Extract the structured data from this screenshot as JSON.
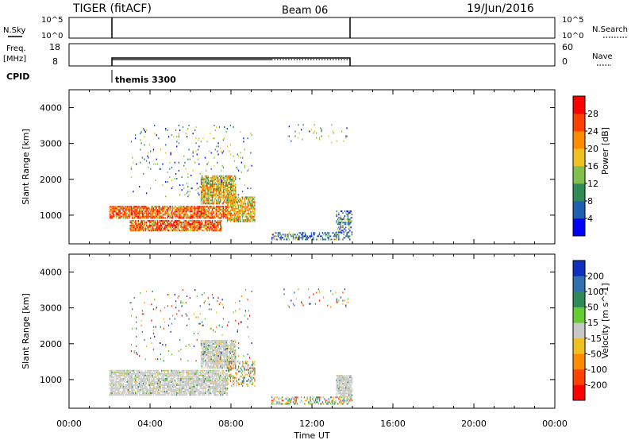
{
  "header": {
    "title_left": "TIGER (fitACF)",
    "title_center": "Beam 06",
    "title_right": "19/Jun/2016"
  },
  "top_panels": {
    "nsky": {
      "label": "N.Sky",
      "ticks": [
        "10^5",
        "10^0"
      ],
      "right_ticks": [
        "10^5",
        "10^0"
      ],
      "right_label": "N.Search"
    },
    "freq": {
      "label_line1": "Freq.",
      "label_line2": "[MHz]",
      "ticks": [
        "18",
        "8"
      ],
      "right_ticks": [
        "60",
        "0"
      ],
      "right_label": "Nave"
    },
    "cpid": {
      "label": "CPID",
      "program": "themis 3300"
    }
  },
  "xaxis": {
    "label": "Time UT",
    "ticks": [
      "00:00",
      "04:00",
      "08:00",
      "12:00",
      "16:00",
      "20:00",
      "00:00"
    ]
  },
  "chart_data": [
    {
      "type": "heatmap",
      "name": "power-panel",
      "ylabel": "Slant Range [km]",
      "ylim": [
        200,
        4500
      ],
      "yticks": [
        "1000",
        "2000",
        "3000",
        "4000"
      ],
      "xlim_hours": [
        0,
        24
      ],
      "colorbar": {
        "label": "Power [dB]",
        "ticks": [
          "4",
          "8",
          "12",
          "16",
          "20",
          "24",
          "28"
        ],
        "colors": [
          "#0000ff",
          "#2060b0",
          "#2e8b57",
          "#7fc04a",
          "#f0c020",
          "#ff8c00",
          "#ff4000",
          "#ff0000"
        ]
      },
      "regions": [
        {
          "t": [
            2.0,
            7.8
          ],
          "r": [
            900,
            1250
          ],
          "level": "high"
        },
        {
          "t": [
            3.0,
            7.5
          ],
          "r": [
            550,
            850
          ],
          "level": "high"
        },
        {
          "t": [
            6.5,
            8.2
          ],
          "r": [
            1300,
            2100
          ],
          "level": "mid"
        },
        {
          "t": [
            7.8,
            9.2
          ],
          "r": [
            800,
            1500
          ],
          "level": "mid"
        },
        {
          "t": [
            10.0,
            14.0
          ],
          "r": [
            300,
            500
          ],
          "level": "low"
        },
        {
          "t": [
            13.2,
            14.0
          ],
          "r": [
            500,
            1100
          ],
          "level": "low"
        },
        {
          "t": [
            10.5,
            13.8
          ],
          "r": [
            3000,
            3500
          ],
          "level": "sparse"
        },
        {
          "t": [
            3.0,
            9.0
          ],
          "r": [
            1500,
            3500
          ],
          "level": "sparse"
        }
      ]
    },
    {
      "type": "heatmap",
      "name": "velocity-panel",
      "ylabel": "Slant Range [km]",
      "ylim": [
        200,
        4500
      ],
      "yticks": [
        "1000",
        "2000",
        "3000",
        "4000"
      ],
      "xlim_hours": [
        0,
        24
      ],
      "colorbar": {
        "label": "Velocity [m s^-1]",
        "ticks": [
          "200",
          "100",
          "50",
          "15",
          "-15",
          "-50",
          "-100",
          "-200"
        ],
        "colors": [
          "#1030c0",
          "#3070b0",
          "#2e8b57",
          "#66cc33",
          "#c8c8c8",
          "#f0c020",
          "#ff8c00",
          "#ff4000",
          "#ff0000"
        ]
      },
      "regions": [
        {
          "t": [
            2.0,
            7.8
          ],
          "r": [
            550,
            1250
          ],
          "level": "ground"
        },
        {
          "t": [
            6.5,
            8.2
          ],
          "r": [
            1300,
            2100
          ],
          "level": "ground"
        },
        {
          "t": [
            7.8,
            9.2
          ],
          "r": [
            800,
            1500
          ],
          "level": "mixed"
        },
        {
          "t": [
            10.0,
            14.0
          ],
          "r": [
            300,
            500
          ],
          "level": "mixed"
        },
        {
          "t": [
            13.2,
            14.0
          ],
          "r": [
            500,
            1100
          ],
          "level": "ground"
        },
        {
          "t": [
            10.5,
            13.8
          ],
          "r": [
            3000,
            3500
          ],
          "level": "sparse"
        },
        {
          "t": [
            3.0,
            9.0
          ],
          "r": [
            1500,
            3500
          ],
          "level": "sparse"
        }
      ]
    }
  ]
}
